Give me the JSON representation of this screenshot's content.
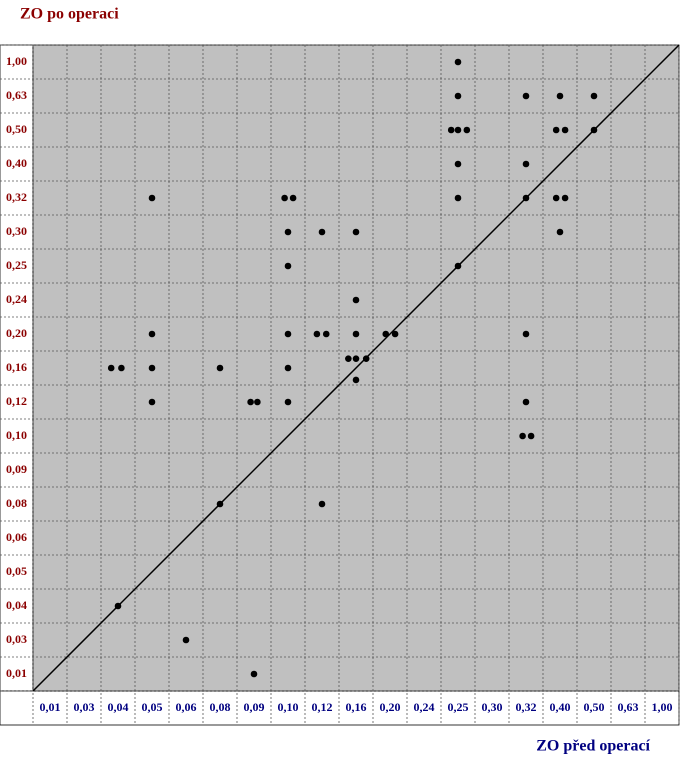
{
  "chart_data": {
    "type": "scatter",
    "y_label": "ZO po operaci",
    "x_label": "ZO před operací",
    "color": "#000000",
    "grid": true,
    "xticks": [
      {
        "value": 0.01,
        "label": "0,01"
      },
      {
        "value": 0.03,
        "label": "0,03"
      },
      {
        "value": 0.04,
        "label": "0,04"
      },
      {
        "value": 0.05,
        "label": "0,05"
      },
      {
        "value": 0.06,
        "label": "0,06"
      },
      {
        "value": 0.08,
        "label": "0,08"
      },
      {
        "value": 0.09,
        "label": "0,09"
      },
      {
        "value": 0.1,
        "label": "0,10"
      },
      {
        "value": 0.12,
        "label": "0,12"
      },
      {
        "value": 0.16,
        "label": "0,16"
      },
      {
        "value": 0.2,
        "label": "0,20"
      },
      {
        "value": 0.24,
        "label": "0,24"
      },
      {
        "value": 0.25,
        "label": "0,25"
      },
      {
        "value": 0.3,
        "label": "0,30"
      },
      {
        "value": 0.32,
        "label": "0,32"
      },
      {
        "value": 0.4,
        "label": "0,40"
      },
      {
        "value": 0.5,
        "label": "0,50"
      },
      {
        "value": 0.63,
        "label": "0,63"
      },
      {
        "value": 1,
        "label": "1,00"
      }
    ],
    "yticks": [
      {
        "value": 0.01,
        "label": "0,01"
      },
      {
        "value": 0.03,
        "label": "0,03"
      },
      {
        "value": 0.04,
        "label": "0,04"
      },
      {
        "value": 0.05,
        "label": "0,05"
      },
      {
        "value": 0.06,
        "label": "0,06"
      },
      {
        "value": 0.08,
        "label": "0,08"
      },
      {
        "value": 0.09,
        "label": "0,09"
      },
      {
        "value": 0.1,
        "label": "0,10"
      },
      {
        "value": 0.12,
        "label": "0,12"
      },
      {
        "value": 0.16,
        "label": "0,16"
      },
      {
        "value": 0.2,
        "label": "0,20"
      },
      {
        "value": 0.24,
        "label": "0,24"
      },
      {
        "value": 0.25,
        "label": "0,25"
      },
      {
        "value": 0.3,
        "label": "0,30"
      },
      {
        "value": 0.32,
        "label": "0,32"
      },
      {
        "value": 0.4,
        "label": "0,40"
      },
      {
        "value": 0.5,
        "label": "0,50"
      },
      {
        "value": 0.63,
        "label": "0,63"
      },
      {
        "value": 1,
        "label": "1,00"
      }
    ],
    "x": [
      0.25,
      0.25,
      0.32,
      0.4,
      0.5,
      0.248,
      0.25,
      0.263,
      0.391,
      0.415,
      0.5,
      0.25,
      0.32,
      0.05,
      0.099,
      0.103,
      0.25,
      0.32,
      0.391,
      0.415,
      0.1,
      0.12,
      0.16,
      0.4,
      0.1,
      0.25,
      0.16,
      0.05,
      0.1,
      0.117,
      0.125,
      0.16,
      0.195,
      0.206,
      0.32,
      0.151,
      0.16,
      0.172,
      0.16,
      0.038,
      0.041,
      0.05,
      0.08,
      0.1,
      0.05,
      0.089,
      0.091,
      0.1,
      0.32,
      0.318,
      0.332,
      0.08,
      0.12,
      0.04,
      0.06,
      0.09
    ],
    "values": [
      1,
      0.63,
      0.63,
      0.63,
      0.63,
      0.5,
      0.5,
      0.5,
      0.5,
      0.5,
      0.5,
      0.4,
      0.4,
      0.32,
      0.32,
      0.32,
      0.32,
      0.32,
      0.32,
      0.32,
      0.3,
      0.3,
      0.3,
      0.3,
      0.25,
      0.25,
      0.24,
      0.2,
      0.2,
      0.2,
      0.2,
      0.2,
      0.2,
      0.2,
      0.2,
      0.171,
      0.171,
      0.171,
      0.146,
      0.16,
      0.16,
      0.16,
      0.16,
      0.16,
      0.12,
      0.12,
      0.12,
      0.12,
      0.12,
      0.1,
      0.1,
      0.08,
      0.08,
      0.04,
      0.03,
      0.01
    ]
  }
}
